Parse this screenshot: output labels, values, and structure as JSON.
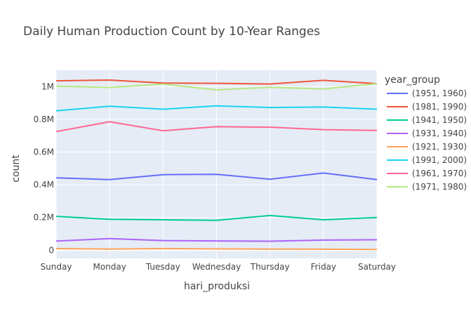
{
  "chart_data": {
    "type": "line",
    "title": "Daily Human Production Count by 10-Year Ranges",
    "xlabel": "hari_produksi",
    "ylabel": "count",
    "categories": [
      "Sunday",
      "Monday",
      "Tuesday",
      "Wednesday",
      "Thursday",
      "Friday",
      "Saturday"
    ],
    "ylim": [
      -50000,
      1100000
    ],
    "yticks": [
      0,
      200000,
      400000,
      600000,
      800000,
      1000000
    ],
    "ytick_labels": [
      "0",
      "0.2M",
      "0.4M",
      "0.6M",
      "0.8M",
      "1M"
    ],
    "grid": true,
    "legend_title": "year_group",
    "legend_position": "right",
    "series": [
      {
        "name": "(1951, 1960)",
        "color": "#636efa",
        "values": [
          442000,
          432000,
          462000,
          464000,
          434000,
          472000,
          432000
        ]
      },
      {
        "name": "(1981, 1990)",
        "color": "#EF553B",
        "values": [
          1035000,
          1040000,
          1022000,
          1020000,
          1016000,
          1038000,
          1018000
        ]
      },
      {
        "name": "(1941, 1950)",
        "color": "#00cc96",
        "values": [
          207000,
          189000,
          186000,
          183000,
          212000,
          186000,
          200000
        ]
      },
      {
        "name": "(1931, 1940)",
        "color": "#ab63fa",
        "values": [
          56000,
          71000,
          59000,
          57000,
          55000,
          62000,
          64000
        ]
      },
      {
        "name": "(1921, 1930)",
        "color": "#FFA15A",
        "values": [
          10000,
          7000,
          10000,
          8000,
          7000,
          6000,
          5000
        ]
      },
      {
        "name": "(1991, 2000)",
        "color": "#19d3f3",
        "values": [
          852000,
          880000,
          862000,
          882000,
          872000,
          875000,
          862000
        ]
      },
      {
        "name": "(1961, 1970)",
        "color": "#FF6692",
        "values": [
          725000,
          785000,
          730000,
          755000,
          752000,
          737000,
          732000
        ]
      },
      {
        "name": "(1971, 1980)",
        "color": "#B6E880",
        "values": [
          1002000,
          995000,
          1015000,
          980000,
          996000,
          985000,
          1018000
        ]
      }
    ]
  }
}
